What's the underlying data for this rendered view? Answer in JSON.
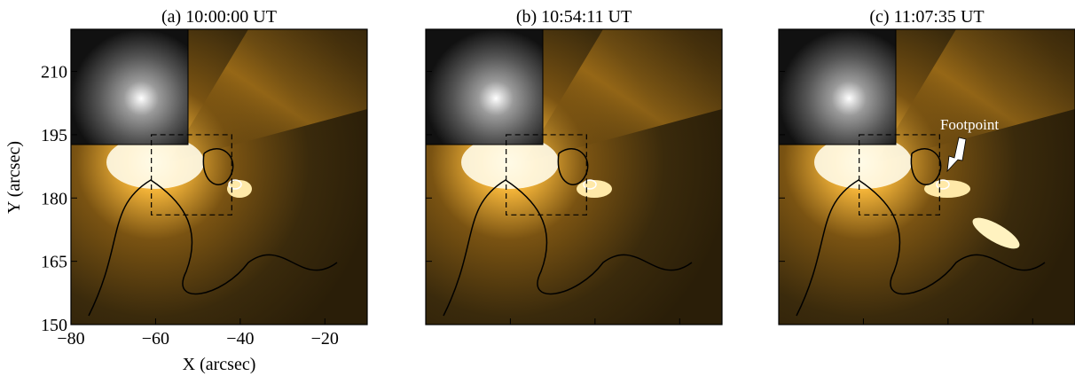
{
  "figure": {
    "panels": [
      {
        "title": "(a) 10:00:00 UT"
      },
      {
        "title": "(b) 10:54:11 UT"
      },
      {
        "title": "(c) 11:07:35 UT",
        "annotation": "Footpoint"
      }
    ],
    "xlabel": "X (arcsec)",
    "ylabel": "Y (arcsec)",
    "xlim": [
      -80,
      -10
    ],
    "ylim": [
      150,
      220
    ],
    "xticks": [
      {
        "value": -80,
        "label": "−80"
      },
      {
        "value": -60,
        "label": "−60"
      },
      {
        "value": -40,
        "label": "−40"
      },
      {
        "value": -20,
        "label": "−20"
      }
    ],
    "yticks": [
      150,
      165,
      180,
      195,
      210
    ]
  }
}
